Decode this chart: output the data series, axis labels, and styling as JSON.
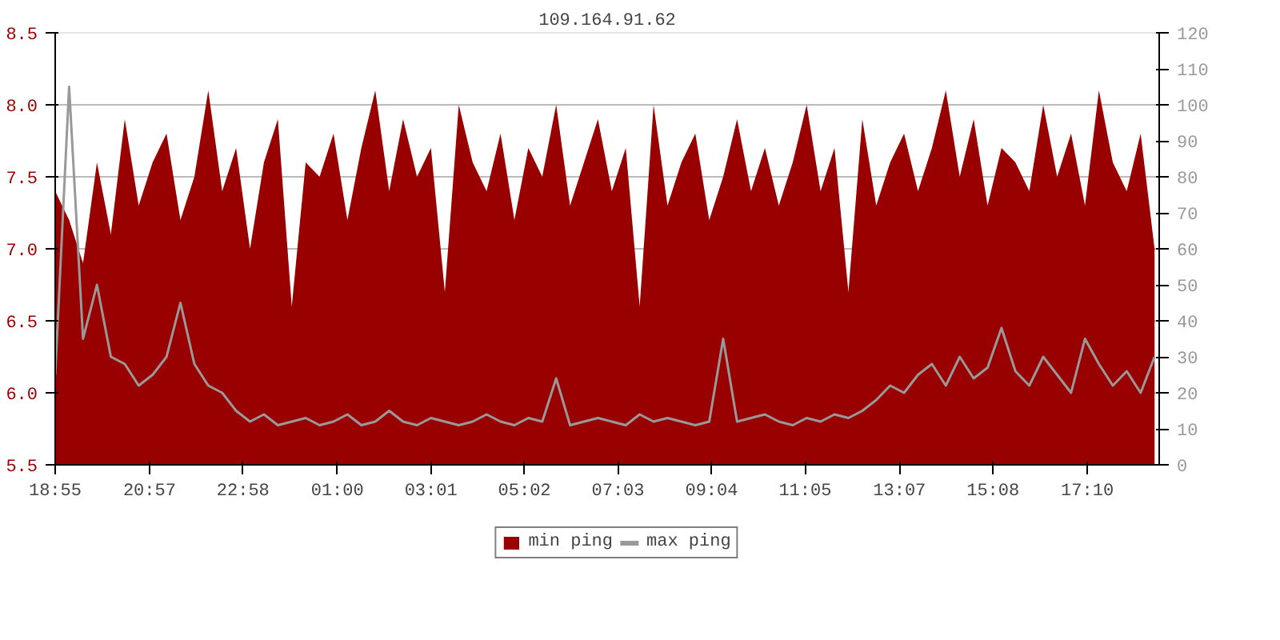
{
  "chart_data": {
    "type": "area",
    "title": "109.164.91.62",
    "x": [
      "2000-01-01T18:55",
      "2000-01-01T19:13",
      "2000-01-01T19:31",
      "2000-01-01T19:49",
      "2000-01-01T20:07",
      "2000-01-01T20:25",
      "2000-01-01T20:43",
      "2000-01-01T21:01",
      "2000-01-01T21:19",
      "2000-01-01T21:37",
      "2000-01-01T21:55",
      "2000-01-01T22:13",
      "2000-01-01T22:31",
      "2000-01-01T22:49",
      "2000-01-01T23:07",
      "2000-01-01T23:25",
      "2000-01-01T23:43",
      "2000-01-02T00:01",
      "2000-01-02T00:19",
      "2000-01-02T00:37",
      "2000-01-02T00:55",
      "2000-01-02T01:13",
      "2000-01-02T01:31",
      "2000-01-02T01:49",
      "2000-01-02T02:07",
      "2000-01-02T02:25",
      "2000-01-02T02:43",
      "2000-01-02T03:01",
      "2000-01-02T03:19",
      "2000-01-02T03:37",
      "2000-01-02T03:55",
      "2000-01-02T04:13",
      "2000-01-02T04:31",
      "2000-01-02T04:49",
      "2000-01-02T05:07",
      "2000-01-02T05:25",
      "2000-01-02T05:43",
      "2000-01-02T06:01",
      "2000-01-02T06:19",
      "2000-01-02T06:37",
      "2000-01-02T06:55",
      "2000-01-02T07:13",
      "2000-01-02T07:31",
      "2000-01-02T07:49",
      "2000-01-02T08:07",
      "2000-01-02T08:25",
      "2000-01-02T08:43",
      "2000-01-02T09:01",
      "2000-01-02T09:19",
      "2000-01-02T09:37",
      "2000-01-02T09:55",
      "2000-01-02T10:13",
      "2000-01-02T10:31",
      "2000-01-02T10:49",
      "2000-01-02T11:07",
      "2000-01-02T11:25",
      "2000-01-02T11:43",
      "2000-01-02T12:01",
      "2000-01-02T12:19",
      "2000-01-02T12:37",
      "2000-01-02T12:55",
      "2000-01-02T13:13",
      "2000-01-02T13:31",
      "2000-01-02T13:49",
      "2000-01-02T14:07",
      "2000-01-02T14:25",
      "2000-01-02T14:43",
      "2000-01-02T15:01",
      "2000-01-02T15:19",
      "2000-01-02T15:37",
      "2000-01-02T15:55",
      "2000-01-02T16:13",
      "2000-01-02T16:31",
      "2000-01-02T16:49",
      "2000-01-02T17:07",
      "2000-01-02T17:25",
      "2000-01-02T17:43",
      "2000-01-02T18:01",
      "2000-01-02T18:19",
      "2000-01-02T18:37"
    ],
    "series": [
      {
        "name": "min ping",
        "color": "#990000",
        "values": [
          7.4,
          7.2,
          6.9,
          7.6,
          7.1,
          7.9,
          7.3,
          7.6,
          7.8,
          7.2,
          7.5,
          8.1,
          7.4,
          7.7,
          7.0,
          7.6,
          7.9,
          6.6,
          7.6,
          7.5,
          7.8,
          7.2,
          7.7,
          8.1,
          7.4,
          7.9,
          7.5,
          7.7,
          6.7,
          8.0,
          7.6,
          7.4,
          7.8,
          7.2,
          7.7,
          7.5,
          8.0,
          7.3,
          7.6,
          7.9,
          7.4,
          7.7,
          6.6,
          8.0,
          7.3,
          7.6,
          7.8,
          7.2,
          7.5,
          7.9,
          7.4,
          7.7,
          7.3,
          7.6,
          8.0,
          7.4,
          7.7,
          6.7,
          7.9,
          7.3,
          7.6,
          7.8,
          7.4,
          7.7,
          8.1,
          7.5,
          7.9,
          7.3,
          7.7,
          7.6,
          7.4,
          8.0,
          7.5,
          7.8,
          7.3,
          8.1,
          7.6,
          7.4,
          7.8,
          7.0
        ]
      },
      {
        "name": "max ping",
        "type": "line",
        "axis": "y2",
        "color": "#999999",
        "values": [
          25,
          105,
          35,
          50,
          30,
          28,
          22,
          25,
          30,
          45,
          28,
          22,
          20,
          15,
          12,
          14,
          11,
          12,
          13,
          11,
          12,
          14,
          11,
          12,
          15,
          12,
          11,
          13,
          12,
          11,
          12,
          14,
          12,
          11,
          13,
          12,
          24,
          11,
          12,
          13,
          12,
          11,
          14,
          12,
          13,
          12,
          11,
          12,
          35,
          12,
          13,
          14,
          12,
          11,
          13,
          12,
          14,
          13,
          15,
          18,
          22,
          20,
          25,
          28,
          22,
          30,
          24,
          27,
          38,
          26,
          22,
          30,
          25,
          20,
          35,
          28,
          22,
          26,
          20,
          30
        ]
      }
    ],
    "xlim": [
      "2000-01-01T18:55",
      "2000-01-02T18:43"
    ],
    "xticks": [
      {
        "value": "2000-01-01T18:55",
        "label": "18:55"
      },
      {
        "value": "2000-01-01T20:57",
        "label": "20:57"
      },
      {
        "value": "2000-01-01T22:58",
        "label": "22:58"
      },
      {
        "value": "2000-01-02T01:00",
        "label": "01:00"
      },
      {
        "value": "2000-01-02T03:01",
        "label": "03:01"
      },
      {
        "value": "2000-01-02T05:02",
        "label": "05:02"
      },
      {
        "value": "2000-01-02T07:03",
        "label": "07:03"
      },
      {
        "value": "2000-01-02T09:04",
        "label": "09:04"
      },
      {
        "value": "2000-01-02T11:05",
        "label": "11:05"
      },
      {
        "value": "2000-01-02T13:07",
        "label": "13:07"
      },
      {
        "value": "2000-01-02T15:08",
        "label": "15:08"
      },
      {
        "value": "2000-01-02T17:10",
        "label": "17:10"
      }
    ],
    "ylim": [
      5.5,
      8.5
    ],
    "yticks": [
      5.5,
      {
        "value": 6,
        "label": "6.0"
      },
      6.5,
      {
        "value": 7,
        "label": "7.0"
      },
      7.5,
      {
        "value": 8,
        "label": "8.0"
      },
      8.5
    ],
    "y2lim": [
      0,
      120
    ],
    "y2ticks": [
      0,
      10,
      20,
      30,
      40,
      50,
      60,
      70,
      80,
      90,
      100,
      110,
      120
    ],
    "grid": "y",
    "legend": "bottom"
  }
}
